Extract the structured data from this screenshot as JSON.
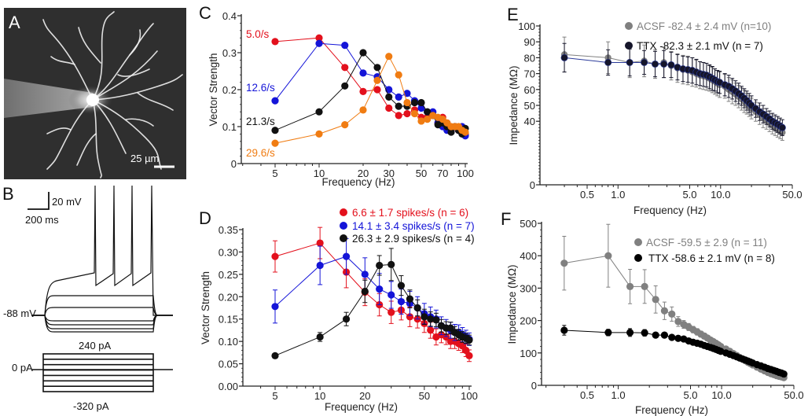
{
  "panel_labels": {
    "a": "A",
    "b": "B",
    "c": "C",
    "d": "D",
    "e": "E",
    "f": "F"
  },
  "panel_a": {
    "scale_bar_label": "25 µm"
  },
  "panel_b": {
    "scale_v_label": "20 mV",
    "scale_h_label": "200 ms",
    "rest_label": "-88 mV",
    "current_top_label": "240 pA",
    "current_zero_label": "0 pA",
    "current_bottom_label": "-320 pA"
  },
  "chart_data": [
    {
      "id": "C",
      "type": "line",
      "xscale": "log",
      "xlabel": "Frequency (Hz)",
      "ylabel": "Vector Strength",
      "xlim": [
        5,
        105
      ],
      "ylim": [
        0,
        0.4
      ],
      "xticks": [
        "5",
        "10",
        "20",
        "30",
        "50",
        "70",
        "100"
      ],
      "yticks": [
        "0",
        "0.1",
        "0.2",
        "0.3",
        "0.4"
      ],
      "x": [
        5,
        10,
        15,
        20,
        25,
        30,
        35,
        40,
        45,
        50,
        55,
        60,
        65,
        70,
        75,
        80,
        85,
        90,
        95,
        100
      ],
      "series": [
        {
          "name": "5.0/s",
          "color": "#e3101c",
          "values": [
            0.33,
            0.34,
            0.26,
            0.195,
            0.2,
            0.15,
            0.13,
            0.135,
            0.145,
            0.125,
            0.125,
            0.13,
            0.11,
            0.125,
            0.11,
            0.09,
            0.1,
            0.09,
            0.085,
            0.08
          ]
        },
        {
          "name": "12.6/s",
          "color": "#1414d8",
          "values": [
            0.17,
            0.325,
            0.32,
            0.245,
            0.235,
            0.2,
            0.18,
            0.19,
            0.17,
            0.15,
            0.14,
            0.14,
            0.11,
            0.1,
            0.09,
            0.09,
            0.1,
            0.09,
            0.1,
            0.075
          ]
        },
        {
          "name": "21.3/s",
          "color": "#111111",
          "values": [
            0.09,
            0.14,
            0.21,
            0.3,
            0.26,
            0.18,
            0.155,
            0.155,
            0.165,
            0.165,
            0.14,
            0.13,
            0.105,
            0.11,
            0.1,
            0.085,
            0.1,
            0.09,
            0.08,
            0.095
          ]
        },
        {
          "name": "29.6/s",
          "color": "#f07c12",
          "values": [
            0.055,
            0.08,
            0.105,
            0.145,
            0.225,
            0.29,
            0.24,
            0.165,
            0.135,
            0.115,
            0.12,
            0.13,
            0.125,
            0.12,
            0.11,
            0.1,
            0.1,
            0.1,
            0.09,
            0.085
          ]
        }
      ]
    },
    {
      "id": "D",
      "type": "line",
      "xscale": "log",
      "xlabel": "Frequency (Hz)",
      "ylabel": "Vector Strength",
      "xlim": [
        5,
        108
      ],
      "ylim": [
        0,
        0.35
      ],
      "xticks": [
        "5",
        "10",
        "20",
        "50",
        "100"
      ],
      "yticks": [
        "0.00",
        "0.05",
        "0.10",
        "0.15",
        "0.20",
        "0.25",
        "0.30",
        "0.35"
      ],
      "x": [
        5,
        10,
        15,
        20,
        25,
        30,
        35,
        40,
        45,
        50,
        55,
        60,
        65,
        70,
        75,
        80,
        85,
        90,
        95,
        100
      ],
      "legend_position": "top-right",
      "series": [
        {
          "name": "6.6 ± 1.7 spikes/s (n = 6)",
          "color": "#e3101c",
          "values": [
            0.29,
            0.32,
            0.255,
            0.21,
            0.182,
            0.165,
            0.17,
            0.155,
            0.15,
            0.14,
            0.125,
            0.11,
            0.115,
            0.11,
            0.1,
            0.1,
            0.095,
            0.09,
            0.08,
            0.068
          ],
          "err": [
            0.035,
            0.035,
            0.035,
            0.03,
            0.025,
            0.025,
            0.022,
            0.022,
            0.02,
            0.02,
            0.018,
            0.018,
            0.018,
            0.017,
            0.016,
            0.016,
            0.015,
            0.015,
            0.014,
            0.013
          ]
        },
        {
          "name": "14.1 ± 3.4 spikes/s (n = 7)",
          "color": "#1414d8",
          "values": [
            0.178,
            0.27,
            0.29,
            0.25,
            0.217,
            0.204,
            0.189,
            0.185,
            0.175,
            0.162,
            0.155,
            0.15,
            0.135,
            0.13,
            0.125,
            0.12,
            0.12,
            0.115,
            0.11,
            0.105
          ],
          "err": [
            0.037,
            0.043,
            0.04,
            0.037,
            0.035,
            0.03,
            0.028,
            0.027,
            0.025,
            0.023,
            0.022,
            0.02,
            0.02,
            0.019,
            0.018,
            0.018,
            0.017,
            0.016,
            0.015,
            0.014
          ]
        },
        {
          "name": "26.3 ± 2.9 spikes/s (n = 4)",
          "color": "#111111",
          "values": [
            0.068,
            0.11,
            0.15,
            0.212,
            0.27,
            0.272,
            0.225,
            0.195,
            0.175,
            0.155,
            0.15,
            0.148,
            0.135,
            0.13,
            0.13,
            0.12,
            0.115,
            0.11,
            0.107,
            0.103
          ],
          "err": [
            0.003,
            0.01,
            0.015,
            0.025,
            0.022,
            0.036,
            0.022,
            0.02,
            0.018,
            0.017,
            0.016,
            0.015,
            0.014,
            0.014,
            0.013,
            0.013,
            0.012,
            0.012,
            0.011,
            0.011
          ]
        }
      ]
    },
    {
      "id": "E",
      "type": "line",
      "xscale": "log",
      "xlabel": "Frequency (Hz)",
      "ylabel": "Impedance (MΩ)",
      "xlim": [
        0.2,
        50
      ],
      "ylim": [
        0,
        100
      ],
      "xticks": [
        "0.5",
        "1.0",
        "5.0",
        "10.0",
        "50.0"
      ],
      "yticks": [
        "0",
        "40",
        "50",
        "60",
        "70",
        "80",
        "90",
        "100"
      ],
      "x": [
        0.3,
        0.8,
        1.3,
        1.8,
        2.3,
        2.8,
        3.3,
        3.8,
        4.3,
        4.8,
        5.3,
        5.8,
        6.3,
        6.8,
        7.3,
        7.8,
        8.3,
        8.8,
        9.3,
        9.8,
        11,
        12,
        13,
        14,
        15,
        16,
        17,
        18,
        19,
        20,
        22,
        24,
        26,
        28,
        30,
        32,
        34,
        36,
        38,
        40
      ],
      "legend_position": "top-right",
      "series": [
        {
          "name": "ACSF -82.4 ± 2.4 mV (n=10)",
          "color": "#808080",
          "values": [
            82,
            80,
            77,
            78,
            76,
            77,
            75,
            73.5,
            72.5,
            72,
            71,
            70,
            69,
            68.5,
            68,
            67,
            66,
            65,
            64,
            63,
            62,
            60,
            58.5,
            57,
            55.5,
            54,
            52.5,
            51,
            49.5,
            48,
            46,
            44,
            42,
            40.5,
            39,
            37.5,
            36,
            35,
            34,
            33
          ],
          "err": [
            11,
            10,
            9.5,
            10,
            9,
            9.5,
            9,
            9,
            9,
            9,
            9,
            8.5,
            8.5,
            8.5,
            8.5,
            8,
            8,
            8,
            8,
            8,
            7.5,
            7.5,
            7.5,
            7,
            7,
            7,
            7,
            6.5,
            6.5,
            6.5,
            6,
            6,
            6,
            5.5,
            5.5,
            5.5,
            5,
            5,
            5,
            5
          ]
        },
        {
          "name": "TTX -82.3 ± 2.1 mV (n = 7)",
          "color": "#15152a",
          "values": [
            80,
            77,
            77,
            77,
            76,
            76,
            75.5,
            74,
            73,
            72.5,
            72,
            71,
            70,
            69.5,
            69,
            68,
            67,
            66,
            65,
            64.5,
            63,
            62,
            60.5,
            59,
            57.5,
            56,
            54.5,
            53,
            51.5,
            50,
            48,
            46,
            44.5,
            43,
            41.5,
            40,
            39,
            38,
            37,
            36
          ],
          "err": [
            9,
            8,
            8.5,
            7.5,
            8,
            8.5,
            8,
            8,
            8,
            8,
            8,
            8,
            7.5,
            7.5,
            7.5,
            7.5,
            7.5,
            7,
            7,
            7,
            7,
            7,
            6.5,
            6.5,
            6.5,
            6,
            6,
            6,
            6,
            6,
            5.5,
            5.5,
            5.5,
            5,
            5,
            5,
            5,
            5,
            5,
            5
          ]
        }
      ]
    },
    {
      "id": "F",
      "type": "line",
      "xscale": "log",
      "xlabel": "Frequency (Hz)",
      "ylabel": "Impedance (MΩ)",
      "xlim": [
        0.2,
        50
      ],
      "ylim": [
        0,
        500
      ],
      "xticks": [
        "0.5",
        "1.0",
        "5.0",
        "10.0",
        "50.0"
      ],
      "yticks": [
        "0",
        "100",
        "200",
        "300",
        "400",
        "500"
      ],
      "x": [
        0.3,
        0.8,
        1.3,
        1.8,
        2.3,
        2.8,
        3.3,
        3.8,
        4.3,
        4.8,
        5.3,
        5.8,
        6.3,
        6.8,
        7.3,
        7.8,
        8.3,
        8.8,
        9.3,
        9.8,
        11,
        12,
        13,
        14,
        15,
        16,
        17,
        18,
        19,
        20,
        22,
        24,
        26,
        28,
        30,
        32,
        34,
        36,
        38,
        40
      ],
      "legend_position": "top-right",
      "series": [
        {
          "name": "ACSF -59.5 ± 2.9 (n = 11)",
          "color": "#808080",
          "values": [
            377,
            400,
            305,
            305,
            265,
            230,
            220,
            197,
            188,
            180,
            172,
            165,
            158,
            152,
            146,
            140,
            135,
            130,
            125,
            120,
            112,
            105,
            98,
            92,
            86,
            81,
            76,
            71,
            67,
            63,
            56,
            50,
            45,
            40,
            36,
            33,
            30,
            28,
            26,
            24
          ],
          "err": [
            83,
            97,
            53,
            52,
            42,
            27,
            22,
            15,
            12,
            11,
            10,
            10,
            9,
            9,
            8,
            8,
            7,
            7,
            7,
            6,
            6,
            5,
            5,
            5,
            4,
            4,
            4,
            4,
            3,
            3,
            3,
            3,
            3,
            3,
            2,
            2,
            2,
            2,
            2,
            2
          ]
        },
        {
          "name": "TTX -58.6 ± 2.1 mV (n = 8)",
          "color": "#000000",
          "values": [
            170,
            163,
            163,
            162,
            155,
            155,
            148,
            145,
            143,
            137,
            133,
            130,
            127,
            123,
            120,
            117,
            114,
            111,
            108,
            105,
            100,
            96,
            92,
            88,
            84,
            81,
            78,
            75,
            72,
            69,
            64,
            60,
            56,
            52,
            49,
            46,
            43,
            40,
            38,
            35
          ],
          "err": [
            15,
            10,
            12,
            10,
            8,
            8,
            6,
            6,
            5,
            5,
            5,
            5,
            4,
            4,
            4,
            4,
            4,
            4,
            3,
            3,
            3,
            3,
            3,
            3,
            3,
            3,
            2,
            2,
            2,
            2,
            2,
            2,
            2,
            2,
            2,
            2,
            2,
            2,
            2,
            2
          ]
        }
      ]
    }
  ]
}
